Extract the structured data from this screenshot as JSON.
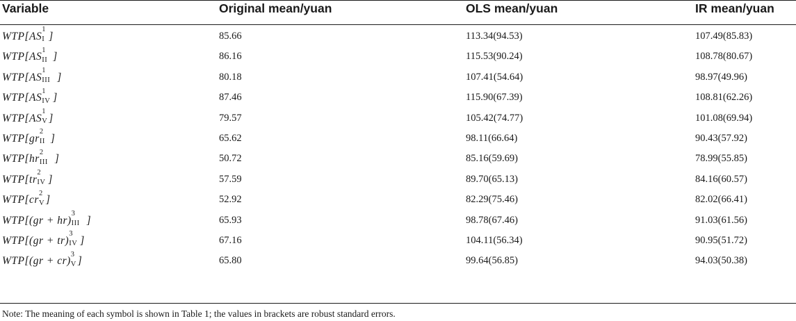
{
  "headers": [
    "Variable",
    "Original mean/yuan",
    "OLS mean/yuan",
    "IR mean/yuan"
  ],
  "rows": [
    {
      "v_base": "AS",
      "v_sup": "1",
      "v_sub": "I",
      "pre": "",
      "post": "",
      "original": "85.66",
      "ols": "113.34(94.53)",
      "ir": "107.49(85.83)"
    },
    {
      "v_base": "AS",
      "v_sup": "1",
      "v_sub": "II",
      "pre": "",
      "post": "",
      "original": "86.16",
      "ols": "115.53(90.24)",
      "ir": "108.78(80.67)"
    },
    {
      "v_base": "AS",
      "v_sup": "1",
      "v_sub": "III",
      "pre": "",
      "post": "",
      "original": "80.18",
      "ols": "107.41(54.64)",
      "ir": "98.97(49.96)"
    },
    {
      "v_base": "AS",
      "v_sup": "1",
      "v_sub": "IV",
      "pre": "",
      "post": "",
      "original": "87.46",
      "ols": "115.90(67.39)",
      "ir": "108.81(62.26)"
    },
    {
      "v_base": "AS",
      "v_sup": "1",
      "v_sub": "V",
      "pre": "",
      "post": "",
      "original": "79.57",
      "ols": "105.42(74.77)",
      "ir": "101.08(69.94)"
    },
    {
      "v_base": "gr",
      "v_sup": "2",
      "v_sub": "II",
      "pre": "",
      "post": "",
      "original": "65.62",
      "ols": "98.11(66.64)",
      "ir": "90.43(57.92)"
    },
    {
      "v_base": "hr",
      "v_sup": "2",
      "v_sub": "III",
      "pre": "",
      "post": "",
      "original": "50.72",
      "ols": "85.16(59.69)",
      "ir": "78.99(55.85)"
    },
    {
      "v_base": "tr",
      "v_sup": "2",
      "v_sub": "IV",
      "pre": "",
      "post": "",
      "original": "57.59",
      "ols": "89.70(65.13)",
      "ir": "84.16(60.57)"
    },
    {
      "v_base": "cr",
      "v_sup": "2",
      "v_sub": "V",
      "pre": "",
      "post": "",
      "original": "52.92",
      "ols": "82.29(75.46)",
      "ir": "82.02(66.41)"
    },
    {
      "v_base": "(gr + hr)",
      "v_sup": "3",
      "v_sub": "III",
      "pre": "",
      "post": "",
      "original": "65.93",
      "ols": "98.78(67.46)",
      "ir": "91.03(61.56)"
    },
    {
      "v_base": "(gr + tr)",
      "v_sup": "3",
      "v_sub": "IV",
      "pre": "",
      "post": "",
      "original": "67.16",
      "ols": "104.11(56.34)",
      "ir": "90.95(51.72)"
    },
    {
      "v_base": "(gr + cr)",
      "v_sup": "3",
      "v_sub": "V",
      "pre": "",
      "post": "",
      "original": "65.80",
      "ols": "99.64(56.85)",
      "ir": "94.03(50.38)"
    }
  ],
  "wtp_prefix": "WTP[",
  "wtp_suffix": "]",
  "note": "Note: The meaning of each symbol is shown in Table 1; the values in brackets are robust standard errors."
}
